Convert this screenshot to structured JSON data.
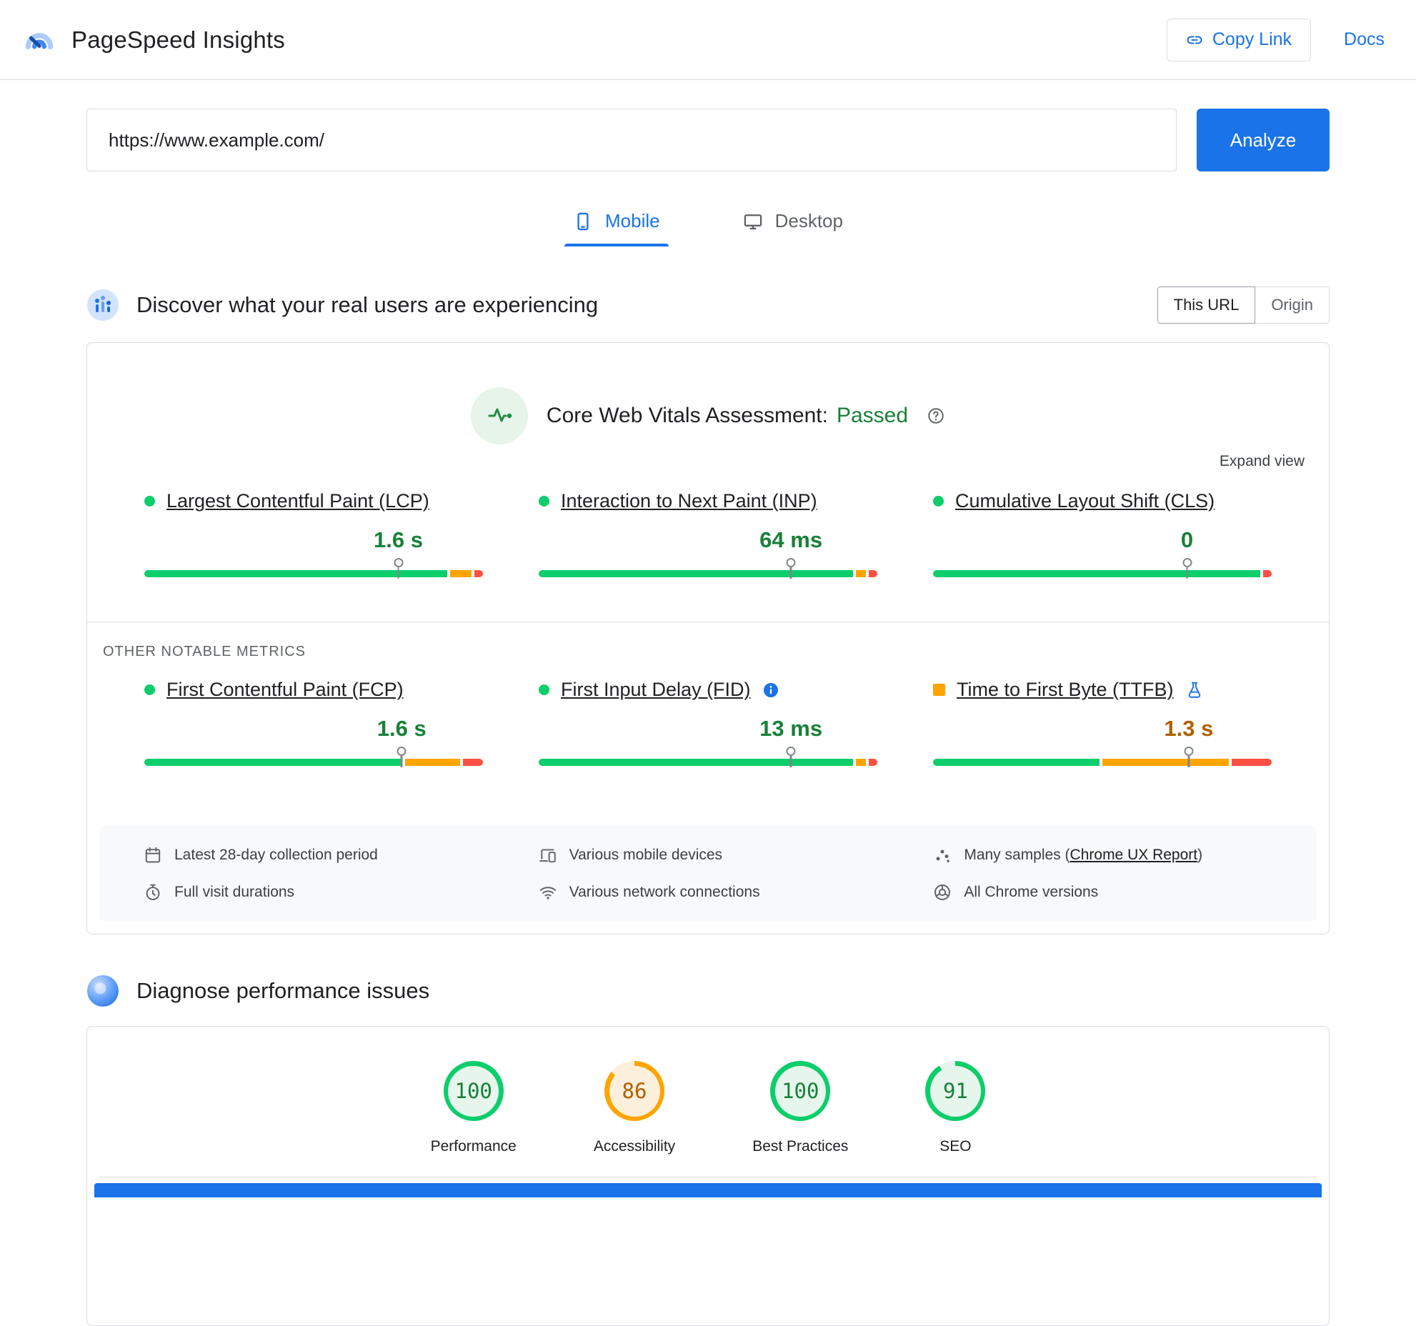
{
  "colors": {
    "blue": "#1a73e8",
    "green": "#0cce6b",
    "orange": "#ffa400",
    "red": "#ff4e42",
    "green_text": "#188038",
    "orange_text": "#b06000",
    "green_tint": "#e7f6ec",
    "orange_tint": "#fcf0dd",
    "gray_text": "#5f6368"
  },
  "header": {
    "title": "PageSpeed Insights",
    "copy_link_label": "Copy Link",
    "docs_label": "Docs"
  },
  "url_form": {
    "value": "https://www.example.com/",
    "analyze_label": "Analyze"
  },
  "tabs": [
    {
      "id": "mobile",
      "label": "Mobile",
      "active": true
    },
    {
      "id": "desktop",
      "label": "Desktop",
      "active": false
    }
  ],
  "field_section": {
    "heading": "Discover what your real users are experiencing",
    "toggle": [
      {
        "id": "this-url",
        "label": "This URL",
        "active": true
      },
      {
        "id": "origin",
        "label": "Origin",
        "active": false
      }
    ],
    "assessment_label": "Core Web Vitals Assessment:",
    "assessment_status": "Passed",
    "expand_label": "Expand view",
    "core_metrics": [
      {
        "id": "lcp",
        "name": "Largest Contentful Paint (LCP)",
        "value": "1.6 s",
        "value_color": "green_text",
        "status": "green",
        "shape": "dot",
        "marker": 75,
        "segments": [
          [
            "green",
            91
          ],
          [
            "orange",
            6.5
          ],
          [
            "red",
            2.5
          ]
        ]
      },
      {
        "id": "inp",
        "name": "Interaction to Next Paint (INP)",
        "value": "64 ms",
        "value_color": "green_text",
        "status": "green",
        "shape": "dot",
        "marker": 74.5,
        "segments": [
          [
            "green",
            94.5
          ],
          [
            "orange",
            3
          ],
          [
            "red",
            2.5
          ]
        ]
      },
      {
        "id": "cls",
        "name": "Cumulative Layout Shift (CLS)",
        "value": "0",
        "value_color": "green_text",
        "status": "green",
        "shape": "dot",
        "marker": 75,
        "segments": [
          [
            "green",
            97.5
          ],
          [
            "red",
            2.5
          ]
        ]
      }
    ],
    "other_label": "OTHER NOTABLE METRICS",
    "other_metrics": [
      {
        "id": "fcp",
        "name": "First Contentful Paint (FCP)",
        "value": "1.6 s",
        "value_color": "green_text",
        "status": "green",
        "shape": "dot",
        "marker": 76,
        "segments": [
          [
            "green",
            77.5
          ],
          [
            "orange",
            16.5
          ],
          [
            "red",
            6
          ]
        ]
      },
      {
        "id": "fid",
        "name": "First Input Delay (FID)",
        "value": "13 ms",
        "value_color": "green_text",
        "status": "green",
        "shape": "dot",
        "info": true,
        "marker": 74.5,
        "segments": [
          [
            "green",
            94.5
          ],
          [
            "orange",
            3
          ],
          [
            "red",
            2.5
          ]
        ]
      },
      {
        "id": "ttfb",
        "name": "Time to First Byte (TTFB)",
        "value": "1.3 s",
        "value_color": "orange_text",
        "status": "orange",
        "shape": "square",
        "flask": true,
        "marker": 75.5,
        "segments": [
          [
            "green",
            50
          ],
          [
            "orange",
            38
          ],
          [
            "red",
            12
          ]
        ]
      }
    ],
    "footer_items": [
      {
        "icon": "calendar",
        "text": "Latest 28-day collection period"
      },
      {
        "icon": "devices",
        "text": "Various mobile devices"
      },
      {
        "icon": "samples",
        "text_prefix": "Many samples (",
        "link": "Chrome UX Report",
        "text_suffix": ")"
      },
      {
        "icon": "stopwatch",
        "text": "Full visit durations"
      },
      {
        "icon": "network",
        "text": "Various network connections"
      },
      {
        "icon": "chrome",
        "text": "All Chrome versions"
      }
    ]
  },
  "diagnose_section": {
    "heading": "Diagnose performance issues",
    "scores": [
      {
        "id": "performance",
        "label": "Performance",
        "value": "100",
        "status": "green"
      },
      {
        "id": "accessibility",
        "label": "Accessibility",
        "value": "86",
        "status": "orange"
      },
      {
        "id": "best-practices",
        "label": "Best Practices",
        "value": "100",
        "status": "green"
      },
      {
        "id": "seo",
        "label": "SEO",
        "value": "91",
        "status": "green"
      }
    ]
  }
}
